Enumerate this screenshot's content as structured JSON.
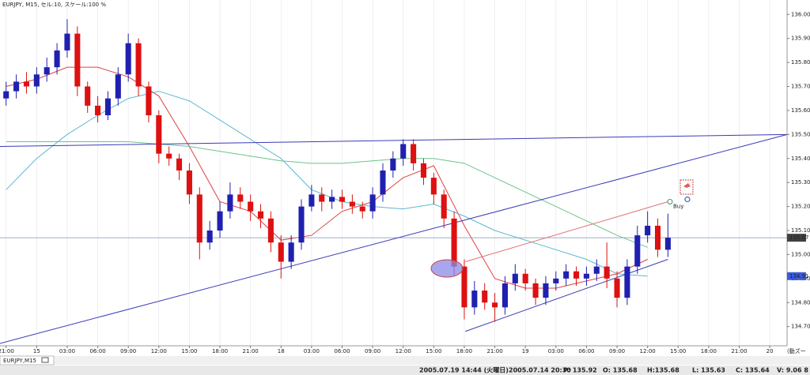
{
  "header": "EURJPY, M15, セル:10, スケール:100 %",
  "tab": "EURJPY,M15",
  "status_bar": [
    "2005.07.19 14:44 (火曜日)",
    "2005.07.14 20:30",
    "P: 135.92",
    "O: 135.68",
    "H:135.68",
    "L: 135.63",
    "C: 135.64",
    "V: 9.06 8"
  ],
  "toolbar_label": "(動ズー",
  "chart_data": {
    "type": "candlestick",
    "open": [
      135.65,
      135.68,
      135.72,
      135.7,
      135.75,
      135.78,
      135.85,
      135.92,
      135.7,
      135.62,
      135.58,
      135.65,
      135.75,
      135.88,
      135.7,
      135.58,
      135.42,
      135.4,
      135.35,
      135.25,
      135.05,
      135.1,
      135.18,
      135.25,
      135.22,
      135.18,
      135.15,
      135.05,
      134.97,
      135.05,
      135.2,
      135.25,
      135.22,
      135.24,
      135.22,
      135.2,
      135.18,
      135.25,
      135.35,
      135.4,
      135.46,
      135.38,
      135.32,
      135.25,
      135.15,
      134.95,
      134.78,
      134.85,
      134.8,
      134.78,
      134.88,
      134.92,
      134.88,
      134.82,
      134.88,
      134.9,
      134.93,
      134.9,
      134.92,
      134.95,
      134.9,
      134.82,
      134.95,
      135.08,
      135.12,
      135.02
    ],
    "high": [
      135.72,
      135.75,
      135.76,
      135.78,
      135.82,
      135.88,
      135.98,
      135.95,
      135.72,
      135.66,
      135.68,
      135.78,
      135.92,
      135.9,
      135.72,
      135.6,
      135.45,
      135.42,
      135.38,
      135.28,
      135.14,
      135.22,
      135.3,
      135.28,
      135.25,
      135.21,
      135.18,
      135.08,
      135.08,
      135.23,
      135.29,
      135.28,
      135.27,
      135.27,
      135.25,
      135.22,
      135.28,
      135.38,
      135.43,
      135.48,
      135.48,
      135.4,
      135.34,
      135.27,
      135.18,
      134.98,
      134.89,
      134.88,
      134.84,
      134.91,
      134.96,
      134.94,
      134.9,
      134.91,
      134.93,
      134.96,
      134.95,
      134.95,
      134.98,
      135.05,
      134.93,
      134.98,
      135.12,
      135.18,
      135.15,
      135.17
    ],
    "low": [
      135.62,
      135.65,
      135.67,
      135.67,
      135.72,
      135.75,
      135.82,
      135.66,
      135.59,
      135.55,
      135.56,
      135.62,
      135.72,
      135.66,
      135.55,
      135.38,
      135.37,
      135.31,
      135.21,
      134.98,
      135.02,
      135.07,
      135.15,
      135.19,
      135.14,
      135.11,
      135.01,
      134.9,
      134.94,
      135.02,
      135.18,
      135.18,
      135.19,
      135.19,
      135.17,
      135.15,
      135.15,
      135.22,
      135.32,
      135.37,
      135.35,
      135.29,
      135.21,
      135.11,
      134.91,
      134.73,
      134.75,
      134.77,
      134.72,
      134.75,
      134.85,
      134.85,
      134.79,
      134.79,
      134.85,
      134.87,
      134.87,
      134.87,
      134.89,
      134.86,
      134.78,
      134.79,
      134.92,
      135.05,
      134.99,
      134.99
    ],
    "close": [
      135.68,
      135.72,
      135.7,
      135.75,
      135.78,
      135.85,
      135.92,
      135.7,
      135.62,
      135.58,
      135.65,
      135.75,
      135.88,
      135.7,
      135.58,
      135.42,
      135.4,
      135.35,
      135.25,
      135.05,
      135.1,
      135.18,
      135.25,
      135.22,
      135.18,
      135.15,
      135.05,
      134.97,
      135.05,
      135.2,
      135.25,
      135.22,
      135.24,
      135.22,
      135.2,
      135.18,
      135.25,
      135.35,
      135.4,
      135.46,
      135.38,
      135.32,
      135.25,
      135.15,
      134.95,
      134.78,
      134.85,
      134.8,
      134.78,
      134.88,
      134.92,
      134.88,
      134.82,
      134.88,
      134.9,
      134.93,
      134.9,
      134.92,
      134.95,
      134.9,
      134.82,
      134.95,
      135.08,
      135.12,
      135.02,
      135.07
    ],
    "up_color": "#2020b0",
    "down_color": "#dd1111",
    "series": [
      {
        "color": "#e04040",
        "x": [
          0,
          3,
          6,
          9,
          12,
          15,
          18,
          21,
          24,
          27,
          30,
          33,
          36,
          39,
          42,
          45,
          48,
          51,
          54,
          57,
          60,
          63
        ],
        "values": [
          135.7,
          135.73,
          135.78,
          135.78,
          135.74,
          135.66,
          135.45,
          135.22,
          135.18,
          135.06,
          135.08,
          135.18,
          135.22,
          135.32,
          135.37,
          135.12,
          134.9,
          134.86,
          134.86,
          134.89,
          134.92,
          134.98
        ]
      },
      {
        "color": "#5ab8d0",
        "x": [
          0,
          3,
          6,
          9,
          12,
          15,
          18,
          21,
          24,
          27,
          30,
          33,
          36,
          39,
          42,
          45,
          48,
          51,
          54,
          57,
          60,
          63
        ],
        "values": [
          135.27,
          135.4,
          135.5,
          135.58,
          135.65,
          135.68,
          135.64,
          135.56,
          135.48,
          135.4,
          135.27,
          135.22,
          135.2,
          135.19,
          135.21,
          135.16,
          135.1,
          135.06,
          135.02,
          134.98,
          134.92,
          134.91
        ]
      },
      {
        "color": "#6cc48c",
        "x": [
          0,
          3,
          6,
          9,
          12,
          15,
          18,
          21,
          24,
          27,
          30,
          33,
          36,
          39,
          42,
          45,
          48,
          51,
          54,
          57,
          60,
          63
        ],
        "values": [
          135.47,
          135.47,
          135.47,
          135.47,
          135.47,
          135.46,
          135.45,
          135.43,
          135.41,
          135.39,
          135.38,
          135.38,
          135.39,
          135.4,
          135.4,
          135.38,
          135.32,
          135.26,
          135.2,
          135.14,
          135.08,
          135.03
        ]
      }
    ],
    "trendlines": [
      {
        "color": "#3a3ab8",
        "x": [
          -0.6,
          76.7
        ],
        "y": [
          135.45,
          135.5
        ]
      },
      {
        "color": "#3a3ab8",
        "x": [
          -0.6,
          76.7
        ],
        "y": [
          134.63,
          135.5
        ]
      },
      {
        "color": "#3a3ab8",
        "x": [
          45.1,
          65.0
        ],
        "y": [
          134.68,
          134.98
        ]
      },
      {
        "color": "#e07070",
        "x": [
          45.1,
          65.0
        ],
        "y": [
          134.97,
          135.22
        ]
      }
    ],
    "hline": {
      "value": 135.07,
      "color": "#8090b0"
    },
    "price_labels": [
      {
        "value": 135.07,
        "color": "#404040"
      },
      {
        "value": 134.91,
        "color": "#3b5bdb"
      }
    ],
    "buy_marker": {
      "label": "Buy",
      "x": 65.2,
      "y": 135.22
    },
    "xlim": [
      -0.6,
      76.7
    ],
    "ylim": [
      134.62,
      136.06
    ],
    "xticks": [
      {
        "value": 0,
        "label": "21:00"
      },
      {
        "value": 3,
        "label": "15"
      },
      {
        "value": 6,
        "label": "03:00"
      },
      {
        "value": 9,
        "label": "06:00"
      },
      {
        "value": 12,
        "label": "09:00"
      },
      {
        "value": 15,
        "label": "12:00"
      },
      {
        "value": 18,
        "label": "15:00"
      },
      {
        "value": 21,
        "label": "18:00"
      },
      {
        "value": 24,
        "label": "21:00"
      },
      {
        "value": 27,
        "label": "18"
      },
      {
        "value": 30,
        "label": "03:00"
      },
      {
        "value": 33,
        "label": "06:00"
      },
      {
        "value": 36,
        "label": "09:00"
      },
      {
        "value": 39,
        "label": "12:00"
      },
      {
        "value": 42,
        "label": "15:00"
      },
      {
        "value": 45,
        "label": "18:00"
      },
      {
        "value": 48,
        "label": "21:00"
      },
      {
        "value": 51,
        "label": "19"
      },
      {
        "value": 54,
        "label": "03:00"
      },
      {
        "value": 57,
        "label": "06:00"
      },
      {
        "value": 60,
        "label": "09:00"
      },
      {
        "value": 63,
        "label": "12:00"
      },
      {
        "value": 66,
        "label": "15:00"
      },
      {
        "value": 69,
        "label": "18:00"
      },
      {
        "value": 72,
        "label": "21:00"
      },
      {
        "value": 75,
        "label": "20"
      }
    ],
    "yticks": [
      {
        "value": 134.7,
        "label": "134.70"
      },
      {
        "value": 134.8,
        "label": "134.80"
      },
      {
        "value": 134.9,
        "label": "134.90"
      },
      {
        "value": 135,
        "label": "135.00"
      },
      {
        "value": 135.1,
        "label": "135.10"
      },
      {
        "value": 135.2,
        "label": "135.20"
      },
      {
        "value": 135.3,
        "label": "135.30"
      },
      {
        "value": 135.4,
        "label": "135.40"
      },
      {
        "value": 135.5,
        "label": "135.50"
      },
      {
        "value": 135.6,
        "label": "135.60"
      },
      {
        "value": 135.7,
        "label": "135.70"
      },
      {
        "value": 135.8,
        "label": "135.80"
      },
      {
        "value": 135.9,
        "label": "135.90"
      },
      {
        "value": 136,
        "label": "136.00"
      }
    ],
    "grid": true
  }
}
